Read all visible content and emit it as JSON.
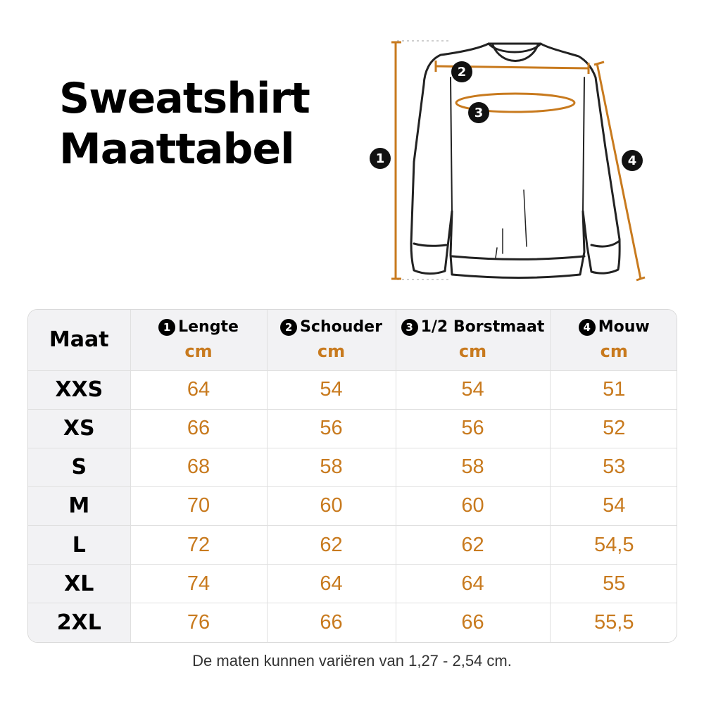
{
  "title": {
    "line1": "Sweatshirt",
    "line2": "Maattabel"
  },
  "diagram": {
    "markers": [
      "1",
      "2",
      "3",
      "4"
    ],
    "accent_color": "#c87a1e"
  },
  "table": {
    "size_header": "Maat",
    "columns": [
      {
        "num": "1",
        "label": "Lengte",
        "unit": "cm"
      },
      {
        "num": "2",
        "label": "Schouder",
        "unit": "cm"
      },
      {
        "num": "3",
        "label": "1/2 Borstmaat",
        "unit": "cm"
      },
      {
        "num": "4",
        "label": "Mouw",
        "unit": "cm"
      }
    ],
    "rows": [
      {
        "size": "XXS",
        "values": [
          "64",
          "54",
          "54",
          "51"
        ]
      },
      {
        "size": "XS",
        "values": [
          "66",
          "56",
          "56",
          "52"
        ]
      },
      {
        "size": "S",
        "values": [
          "68",
          "58",
          "58",
          "53"
        ]
      },
      {
        "size": "M",
        "values": [
          "70",
          "60",
          "60",
          "54"
        ]
      },
      {
        "size": "L",
        "values": [
          "72",
          "62",
          "62",
          "54,5"
        ]
      },
      {
        "size": "XL",
        "values": [
          "74",
          "64",
          "64",
          "55"
        ]
      },
      {
        "size": "2XL",
        "values": [
          "76",
          "66",
          "66",
          "55,5"
        ]
      }
    ]
  },
  "footnote": "De maten kunnen variëren van 1,27 - 2,54 cm."
}
